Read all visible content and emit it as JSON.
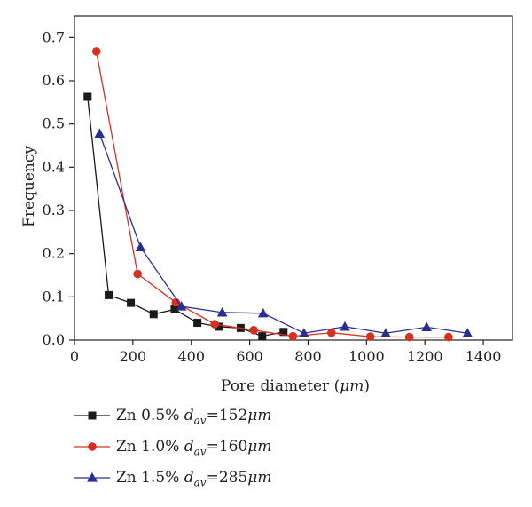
{
  "chart_data": {
    "type": "line",
    "xlabel": "Pore diameter (",
    "xlabel_unit": "μm",
    "xlabel_close": ")",
    "ylabel": "Frequency",
    "xlim": [
      0,
      1500
    ],
    "ylim": [
      0,
      0.75
    ],
    "x_ticks": [
      0,
      200,
      400,
      600,
      800,
      1000,
      1200,
      1400
    ],
    "y_ticks": [
      0.0,
      0.1,
      0.2,
      0.3,
      0.4,
      0.5,
      0.6,
      0.7
    ],
    "y_tick_labels": [
      "0.0",
      "0.1",
      "0.2",
      "0.3",
      "0.4",
      "0.5",
      "0.6",
      "0.7"
    ],
    "grid": false,
    "legend_position": "bottom-left",
    "series": [
      {
        "name": "Zn 0.5%",
        "legend_sub_label": "av",
        "legend_value": "=152",
        "legend_unit": "μm",
        "color": "#1a1a1a",
        "marker": "square",
        "x": [
          45,
          117,
          193,
          271,
          343,
          421,
          494,
          569,
          643,
          716
        ],
        "y": [
          0.563,
          0.104,
          0.086,
          0.06,
          0.071,
          0.04,
          0.031,
          0.028,
          0.009,
          0.019
        ]
      },
      {
        "name": "Zn 1.0%",
        "legend_sub_label": "av",
        "legend_value": "=160",
        "legend_unit": "μm",
        "color": "#d7301f",
        "marker": "circle",
        "x": [
          75,
          216,
          347,
          480,
          614,
          748,
          880,
          1013,
          1147,
          1281
        ],
        "y": [
          0.668,
          0.153,
          0.087,
          0.037,
          0.023,
          0.009,
          0.017,
          0.008,
          0.007,
          0.007
        ]
      },
      {
        "name": "Zn 1.5%",
        "legend_sub_label": "av",
        "legend_value": "=285",
        "legend_unit": "μm",
        "color": "#2a2f8f",
        "marker": "triangle",
        "x": [
          86,
          226,
          366,
          506,
          646,
          786,
          926,
          1066,
          1206,
          1346
        ],
        "y": [
          0.478,
          0.215,
          0.078,
          0.064,
          0.062,
          0.016,
          0.031,
          0.016,
          0.03,
          0.016
        ]
      }
    ]
  }
}
